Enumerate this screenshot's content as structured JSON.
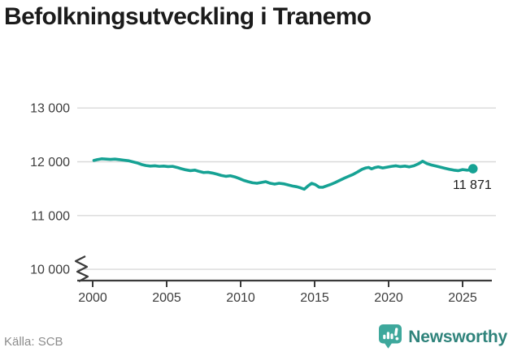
{
  "header": {
    "title": "Befolkningsutveckling i Tranemo"
  },
  "footer": {
    "source": "Källa: SCB",
    "brand": "Newsworthy"
  },
  "colors": {
    "line": "#16a294",
    "grid": "#d9d9d9",
    "axis": "#3a3a3a",
    "tick_text": "#3d3d3d",
    "title_text": "#1b1b1b",
    "source_text": "#8c8c8c",
    "end_label_text": "#1a1a1a",
    "logo_icon": "#3ea89c",
    "logo_text": "#2f837b"
  },
  "chart_data": {
    "type": "line",
    "title": "Befolkningsutveckling i Tranemo",
    "xlabel": "",
    "ylabel": "",
    "grid": "horizontal",
    "axis_break": true,
    "xlim": [
      1999,
      2027.3
    ],
    "ylim": [
      10000,
      13000
    ],
    "x_ticks": [
      {
        "year": 2000,
        "label": "2000"
      },
      {
        "year": 2005,
        "label": "2005"
      },
      {
        "year": 2010,
        "label": "2010"
      },
      {
        "year": 2015,
        "label": "2015"
      },
      {
        "year": 2020,
        "label": "2020"
      },
      {
        "year": 2025,
        "label": "2025"
      }
    ],
    "y_ticks": [
      {
        "value": 13000,
        "label": "13 000"
      },
      {
        "value": 12000,
        "label": "12 000"
      },
      {
        "value": 11000,
        "label": "11 000"
      },
      {
        "value": 10000,
        "label": "10 000"
      }
    ],
    "series": [
      {
        "name": "Befolkning",
        "points": [
          [
            2000.08,
            12025
          ],
          [
            2000.3,
            12040
          ],
          [
            2000.6,
            12055
          ],
          [
            2000.9,
            12050
          ],
          [
            2001.2,
            12045
          ],
          [
            2001.5,
            12050
          ],
          [
            2001.8,
            12040
          ],
          [
            2002.1,
            12030
          ],
          [
            2002.4,
            12020
          ],
          [
            2002.7,
            12000
          ],
          [
            2003.0,
            11980
          ],
          [
            2003.3,
            11950
          ],
          [
            2003.6,
            11930
          ],
          [
            2003.9,
            11920
          ],
          [
            2004.2,
            11925
          ],
          [
            2004.5,
            11915
          ],
          [
            2004.8,
            11920
          ],
          [
            2005.1,
            11910
          ],
          [
            2005.4,
            11915
          ],
          [
            2005.7,
            11895
          ],
          [
            2006.0,
            11870
          ],
          [
            2006.3,
            11850
          ],
          [
            2006.6,
            11835
          ],
          [
            2006.9,
            11845
          ],
          [
            2007.2,
            11820
          ],
          [
            2007.5,
            11800
          ],
          [
            2007.8,
            11805
          ],
          [
            2008.1,
            11790
          ],
          [
            2008.4,
            11770
          ],
          [
            2008.7,
            11745
          ],
          [
            2009.0,
            11730
          ],
          [
            2009.3,
            11740
          ],
          [
            2009.6,
            11720
          ],
          [
            2009.9,
            11690
          ],
          [
            2010.2,
            11655
          ],
          [
            2010.5,
            11630
          ],
          [
            2010.8,
            11610
          ],
          [
            2011.1,
            11600
          ],
          [
            2011.4,
            11615
          ],
          [
            2011.7,
            11630
          ],
          [
            2012.0,
            11600
          ],
          [
            2012.3,
            11585
          ],
          [
            2012.6,
            11600
          ],
          [
            2012.9,
            11590
          ],
          [
            2013.2,
            11570
          ],
          [
            2013.5,
            11550
          ],
          [
            2013.8,
            11535
          ],
          [
            2014.05,
            11515
          ],
          [
            2014.3,
            11490
          ],
          [
            2014.55,
            11550
          ],
          [
            2014.8,
            11600
          ],
          [
            2015.05,
            11575
          ],
          [
            2015.3,
            11528
          ],
          [
            2015.55,
            11525
          ],
          [
            2015.8,
            11550
          ],
          [
            2016.1,
            11580
          ],
          [
            2016.4,
            11615
          ],
          [
            2016.7,
            11655
          ],
          [
            2017.0,
            11695
          ],
          [
            2017.3,
            11730
          ],
          [
            2017.6,
            11765
          ],
          [
            2017.9,
            11810
          ],
          [
            2018.2,
            11860
          ],
          [
            2018.45,
            11885
          ],
          [
            2018.65,
            11895
          ],
          [
            2018.85,
            11868
          ],
          [
            2019.05,
            11890
          ],
          [
            2019.3,
            11905
          ],
          [
            2019.6,
            11885
          ],
          [
            2019.9,
            11900
          ],
          [
            2020.2,
            11915
          ],
          [
            2020.5,
            11925
          ],
          [
            2020.8,
            11910
          ],
          [
            2021.1,
            11920
          ],
          [
            2021.4,
            11905
          ],
          [
            2021.7,
            11925
          ],
          [
            2022.0,
            11960
          ],
          [
            2022.3,
            12010
          ],
          [
            2022.6,
            11965
          ],
          [
            2022.9,
            11940
          ],
          [
            2023.2,
            11920
          ],
          [
            2023.5,
            11900
          ],
          [
            2023.8,
            11880
          ],
          [
            2024.1,
            11860
          ],
          [
            2024.4,
            11845
          ],
          [
            2024.7,
            11835
          ],
          [
            2025.0,
            11855
          ],
          [
            2025.3,
            11845
          ],
          [
            2025.55,
            11848
          ],
          [
            2025.7,
            11871
          ]
        ]
      }
    ],
    "end_point": {
      "year": 2025.7,
      "value": 11871,
      "label": "11 871"
    }
  }
}
